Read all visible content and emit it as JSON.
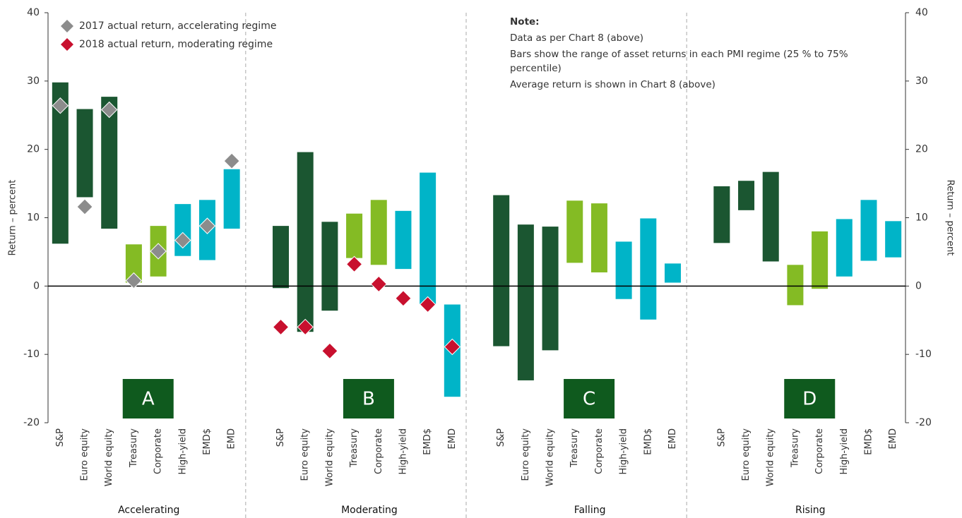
{
  "chart_data": {
    "type": "range_bar",
    "y_label": "Return – percent",
    "y2_label": "Return – percent",
    "ylim": [
      -20,
      40
    ],
    "yticks": [
      -20,
      -10,
      0,
      10,
      20,
      30,
      40
    ],
    "y2lim": [
      -20,
      40
    ],
    "y2ticks": [
      -20,
      -10,
      0,
      10,
      20,
      30,
      40
    ],
    "categories": [
      "S&P",
      "Euro equity",
      "World equity",
      "Treasury",
      "Corporate",
      "High-yield",
      "EMD$",
      "EMD"
    ],
    "colors": [
      "#1b5631",
      "#1b5631",
      "#1b5631",
      "#84bb24",
      "#84bb24",
      "#00b4c8",
      "#00b4c8",
      "#00b4c8"
    ],
    "label_color": "#0f5a1e",
    "groups": [
      {
        "name": "Accelerating",
        "label": "A",
        "low": [
          6.2,
          13.0,
          8.4,
          0.5,
          1.4,
          4.4,
          3.8,
          8.4
        ],
        "high": [
          29.8,
          25.9,
          27.7,
          6.1,
          8.8,
          12.0,
          12.6,
          17.1
        ],
        "markers": {
          "name": "2017 actual return, accelerating regime",
          "color": "#8c8c8c",
          "values": [
            26.4,
            11.6,
            25.8,
            0.8,
            5.1,
            6.7,
            8.8,
            18.3
          ]
        }
      },
      {
        "name": "Moderating",
        "label": "B",
        "low": [
          -0.3,
          -6.7,
          -3.6,
          4.1,
          3.1,
          2.5,
          -2.6,
          -16.2
        ],
        "high": [
          8.8,
          19.6,
          9.4,
          10.6,
          12.6,
          11.0,
          16.6,
          -2.7
        ],
        "markers": {
          "name": "2018 actual return, moderating regime",
          "color": "#c8102e",
          "values": [
            -6.0,
            -6.0,
            -9.5,
            3.2,
            0.3,
            -1.8,
            -2.7,
            -8.9
          ]
        }
      },
      {
        "name": "Falling",
        "label": "C",
        "low": [
          -8.8,
          -13.8,
          -9.4,
          3.4,
          2.0,
          -1.9,
          -4.9,
          0.5
        ],
        "high": [
          13.3,
          9.0,
          8.7,
          12.5,
          12.1,
          6.5,
          9.9,
          3.3
        ]
      },
      {
        "name": "Rising",
        "label": "D",
        "low": [
          6.3,
          11.1,
          3.6,
          -2.8,
          -0.4,
          1.4,
          3.7,
          4.2
        ],
        "high": [
          14.6,
          15.4,
          16.7,
          3.1,
          8.0,
          9.8,
          12.6,
          9.5
        ]
      }
    ],
    "note": {
      "title": "Note:",
      "lines": [
        "Data as per Chart 8 (above)",
        "Bars show the range of asset returns in each PMI regime (25 % to 75% percentile)",
        "Average return is shown in Chart 8 (above)"
      ]
    }
  }
}
